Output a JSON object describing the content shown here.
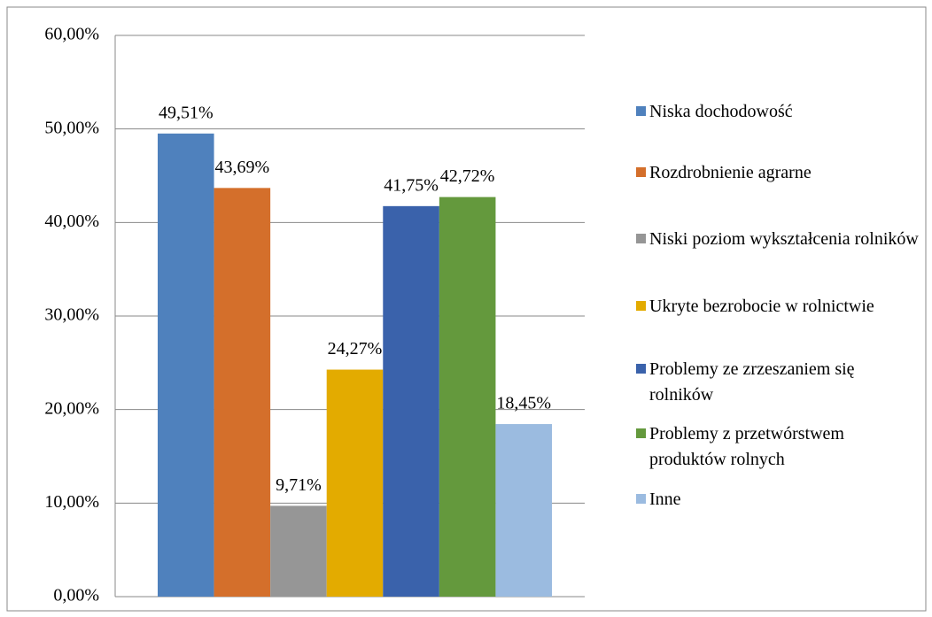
{
  "chart_data": {
    "type": "bar",
    "categories": [
      null
    ],
    "series": [
      {
        "name": "Niska dochodowość",
        "color": "#4f81bd",
        "values": [
          49.51
        ],
        "value_labels": [
          "49,51%"
        ]
      },
      {
        "name": "Rozdrobnienie agrarne",
        "color": "#d46f2b",
        "values": [
          43.69
        ],
        "value_labels": [
          "43,69%"
        ]
      },
      {
        "name": "Niski poziom wykształcenia rolników",
        "color": "#969696",
        "values": [
          9.71
        ],
        "value_labels": [
          "9,71%"
        ]
      },
      {
        "name": "Ukryte bezrobocie w rolnictwie",
        "color": "#e3ab00",
        "values": [
          24.27
        ],
        "value_labels": [
          "24,27%"
        ]
      },
      {
        "name": "Problemy ze zrzeszaniem się rolników",
        "color": "#3a62ab",
        "values": [
          41.75
        ],
        "value_labels": [
          "41,75%"
        ]
      },
      {
        "name": "Problemy z przetwórstwem produktów rolnych",
        "color": "#64993d",
        "values": [
          42.72
        ],
        "value_labels": [
          "42,72%"
        ]
      },
      {
        "name": "Inne",
        "color": "#9bbbe0",
        "values": [
          18.45
        ],
        "value_labels": [
          "18,45%"
        ]
      }
    ],
    "ylim": [
      0,
      60
    ],
    "yticks": [
      {
        "value": 0,
        "label": "0,00%"
      },
      {
        "value": 10,
        "label": "10,00%"
      },
      {
        "value": 20,
        "label": "20,00%"
      },
      {
        "value": 30,
        "label": "30,00%"
      },
      {
        "value": 40,
        "label": "40,00%"
      },
      {
        "value": 50,
        "label": "50,00%"
      },
      {
        "value": 60,
        "label": "60,00%"
      }
    ],
    "grid": true,
    "legend": "right"
  }
}
